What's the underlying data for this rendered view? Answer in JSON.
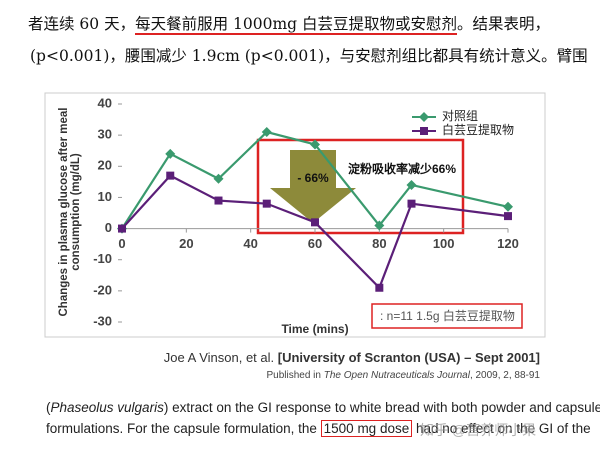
{
  "header": {
    "line1": [
      "者连续 60 天，",
      "每天餐前服用 1000mg 白芸豆提取物或安慰剂",
      "。结果表明，"
    ],
    "line2": "(p<0.001)，腰围减少 1.9cm (p<0.001)，与安慰剂组比都具有统计意义。臂围"
  },
  "chart_data": {
    "type": "line",
    "x_label": "Time (mins)",
    "y_label": "Changes in plasma glucose after meal consumption (mg/dL)",
    "x": [
      0,
      15,
      30,
      45,
      60,
      80,
      90,
      120
    ],
    "xlim": [
      0,
      120
    ],
    "xticks": [
      0,
      20,
      40,
      60,
      80,
      100,
      120
    ],
    "ylim": [
      -30,
      40
    ],
    "yticks": [
      -30,
      -20,
      -10,
      0,
      10,
      20,
      30,
      40
    ],
    "series": [
      {
        "name": "对照组",
        "color": "#3a9a6e",
        "marker": "diamond",
        "values": [
          0,
          24,
          16,
          31,
          27,
          1,
          14,
          7
        ]
      },
      {
        "name": "白芸豆提取物",
        "color": "#5b1f78",
        "marker": "square",
        "values": [
          0,
          17,
          9,
          8,
          2,
          -19,
          8,
          4
        ]
      }
    ],
    "annotations": [
      "- 66%",
      "淀粉吸收率减少66%",
      ": n=11 1.5g 白芸豆提取物"
    ]
  },
  "citation": {
    "authors": "Joe A Vinson, et al.",
    "affiliation": "[University of Scranton (USA) – Sept 2001]",
    "published": [
      "Published in",
      "The Open Nutraceuticals Journal",
      ", 2009, 2, 88-91"
    ]
  },
  "excerpt": {
    "line1": [
      "(",
      "Phaseolus vulgaris",
      ") extract on the GI response to white bread with both powder and capsule"
    ],
    "line2": [
      "formulations. For the capsule formulation, the",
      "1500 mg dose",
      "had no effect on the GI of the"
    ]
  },
  "watermark": "知乎 @营养师小果"
}
